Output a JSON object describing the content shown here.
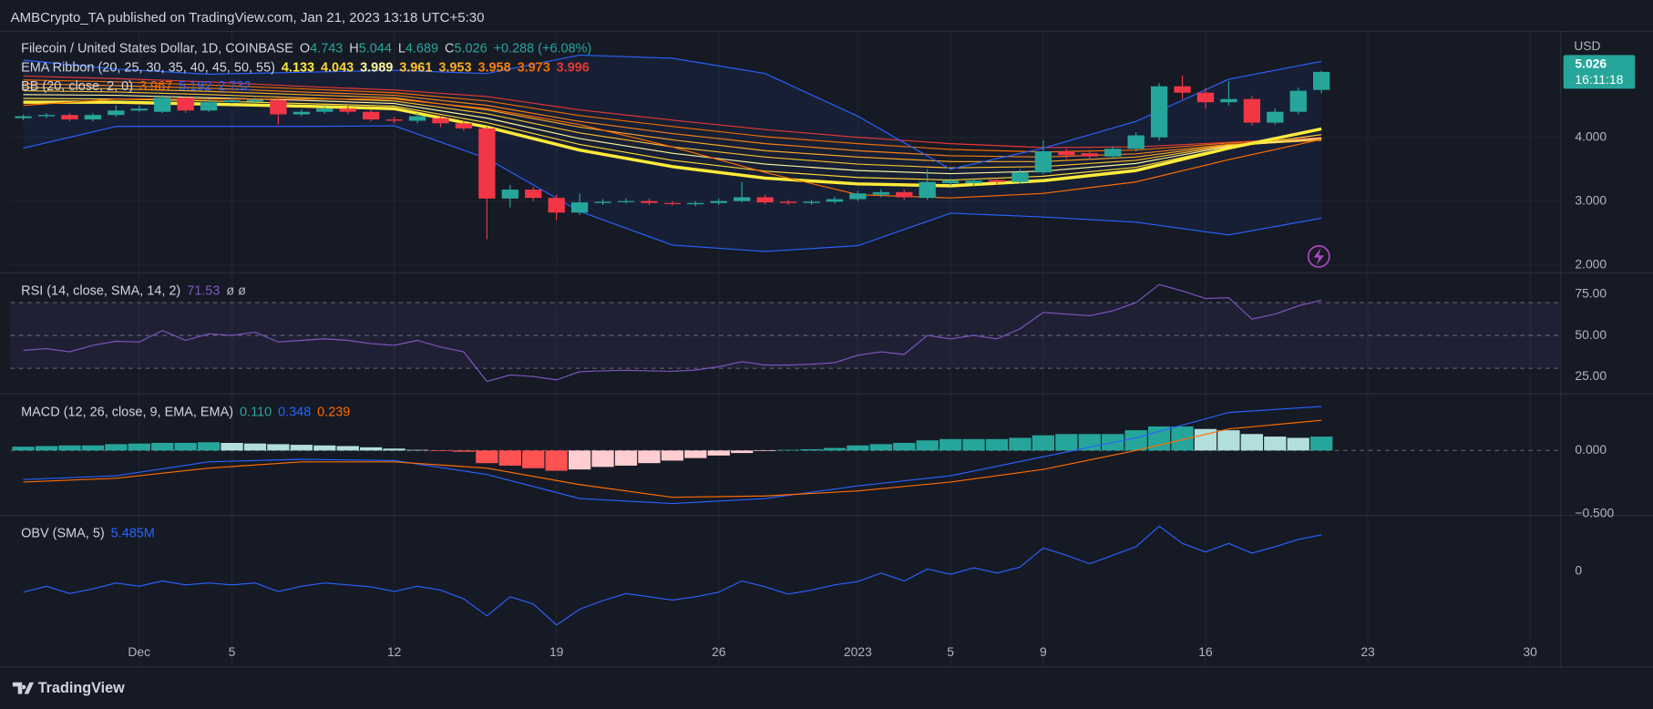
{
  "header": {
    "published": "AMBCrypto_TA published on TradingView.com, Jan 21, 2023 13:18 UTC+5:30"
  },
  "footer": {
    "brand": "TradingView"
  },
  "chart_data": [
    {
      "type": "candlestick",
      "title": "Filecoin / United States Dollar, 1D, COINBASE",
      "ohlc_labels": [
        "O",
        "H",
        "L",
        "C"
      ],
      "change_label": "+0.288 (+6.08%)",
      "currency": "USD",
      "countdown": "16:11:18",
      "up_color": "#26a69a",
      "down_color": "#f23645",
      "open": [
        4.3,
        4.33,
        4.35,
        4.28,
        4.35,
        4.42,
        4.4,
        4.62,
        4.42,
        4.55,
        4.56,
        4.58,
        4.36,
        4.4,
        4.45,
        4.4,
        4.28,
        4.26,
        4.3,
        4.22,
        4.14,
        3.04,
        3.18,
        3.05,
        2.82,
        2.97,
        2.99,
        3.0,
        2.97,
        2.95,
        2.97,
        3.0,
        3.06,
        2.99,
        2.97,
        2.99,
        3.03,
        3.1,
        3.14,
        3.05,
        3.28,
        3.28,
        3.33,
        3.3,
        3.45,
        3.78,
        3.75,
        3.7,
        3.82,
        4.0,
        4.8,
        4.7,
        4.55,
        4.6,
        4.23,
        4.4,
        4.743
      ],
      "high": [
        4.36,
        4.38,
        4.38,
        4.38,
        4.5,
        4.5,
        4.66,
        4.65,
        4.6,
        4.62,
        4.62,
        4.62,
        4.44,
        4.48,
        4.5,
        4.43,
        4.32,
        4.38,
        4.34,
        4.26,
        4.17,
        3.25,
        3.22,
        3.1,
        3.12,
        3.03,
        3.04,
        3.04,
        3.0,
        3.0,
        3.04,
        3.3,
        3.1,
        3.02,
        3.02,
        3.07,
        3.16,
        3.18,
        3.18,
        3.5,
        3.36,
        3.36,
        3.37,
        3.5,
        3.95,
        3.82,
        3.8,
        3.86,
        4.08,
        4.85,
        4.97,
        4.78,
        4.88,
        4.65,
        4.45,
        4.78,
        5.044
      ],
      "low": [
        4.27,
        4.3,
        4.25,
        4.25,
        4.32,
        4.4,
        4.38,
        4.38,
        4.4,
        4.52,
        4.53,
        4.2,
        4.33,
        4.37,
        4.36,
        4.25,
        4.22,
        4.22,
        4.16,
        4.1,
        2.4,
        2.9,
        3.0,
        2.7,
        2.78,
        2.94,
        2.96,
        2.94,
        2.93,
        2.92,
        2.94,
        2.98,
        2.95,
        2.94,
        2.94,
        2.96,
        3.0,
        3.06,
        3.02,
        3.02,
        3.24,
        3.24,
        3.26,
        3.27,
        3.42,
        3.66,
        3.65,
        3.66,
        3.78,
        3.95,
        4.6,
        4.45,
        4.5,
        4.18,
        4.2,
        4.36,
        4.689
      ],
      "close": [
        4.33,
        4.35,
        4.28,
        4.35,
        4.42,
        4.45,
        4.62,
        4.42,
        4.55,
        4.58,
        4.59,
        4.36,
        4.4,
        4.45,
        4.4,
        4.28,
        4.26,
        4.33,
        4.22,
        4.14,
        3.04,
        3.18,
        3.05,
        2.82,
        2.98,
        2.99,
        3.0,
        2.97,
        2.96,
        2.97,
        3.0,
        3.06,
        2.98,
        2.97,
        2.99,
        3.03,
        3.12,
        3.14,
        3.06,
        3.3,
        3.32,
        3.32,
        3.3,
        3.45,
        3.78,
        3.72,
        3.7,
        3.82,
        4.03,
        4.8,
        4.7,
        4.55,
        4.6,
        4.23,
        4.4,
        4.73,
        5.026
      ],
      "xlim": [
        -0.55,
        66.3
      ],
      "xticks": [
        {
          "value": 5,
          "label": "Dec"
        },
        {
          "value": 9,
          "label": "5"
        },
        {
          "value": 16,
          "label": "12"
        },
        {
          "value": 23,
          "label": "19"
        },
        {
          "value": 30,
          "label": "26"
        },
        {
          "value": 36,
          "label": "2023"
        },
        {
          "value": 40,
          "label": "5"
        },
        {
          "value": 44,
          "label": "9"
        },
        {
          "value": 51,
          "label": "16"
        },
        {
          "value": 58,
          "label": "23"
        },
        {
          "value": 65,
          "label": "30"
        }
      ],
      "ylim": [
        1.884,
        5.653
      ],
      "yticks": [
        {
          "value": 2,
          "label": "2.000"
        },
        {
          "value": 3,
          "label": "3.000"
        },
        {
          "value": 4,
          "label": "4.000"
        }
      ],
      "grid": true,
      "overlays": [
        {
          "name": "EMA Ribbon (20, 25, 30, 35, 40, 45, 50, 55)",
          "x": [
            0,
            4,
            8,
            12,
            16,
            20,
            24,
            28,
            32,
            36,
            40,
            44,
            48,
            52,
            56
          ],
          "series": [
            {
              "color": "#ffeb3b",
              "width": 3,
              "values": [
                4.55,
                4.55,
                4.52,
                4.49,
                4.45,
                4.16,
                3.8,
                3.54,
                3.36,
                3.27,
                3.24,
                3.32,
                3.48,
                3.83,
                4.133
              ]
            },
            {
              "color": "#fdd835",
              "width": 1,
              "values": [
                4.61,
                4.6,
                4.57,
                4.53,
                4.49,
                4.23,
                3.89,
                3.64,
                3.47,
                3.37,
                3.33,
                3.39,
                3.53,
                3.84,
                4.043
              ]
            },
            {
              "color": "#fff59d",
              "width": 1,
              "values": [
                4.67,
                4.66,
                4.62,
                4.58,
                4.53,
                4.3,
                3.98,
                3.75,
                3.58,
                3.48,
                3.43,
                3.47,
                3.59,
                3.86,
                3.989
              ]
            },
            {
              "color": "#fbc02d",
              "width": 1,
              "values": [
                4.73,
                4.71,
                4.67,
                4.62,
                4.57,
                4.37,
                4.07,
                3.85,
                3.69,
                3.58,
                3.52,
                3.54,
                3.64,
                3.87,
                3.961
              ]
            },
            {
              "color": "#f9a825",
              "width": 1,
              "values": [
                4.78,
                4.76,
                4.72,
                4.67,
                4.62,
                4.43,
                4.16,
                3.96,
                3.79,
                3.69,
                3.62,
                3.62,
                3.69,
                3.88,
                3.953
              ]
            },
            {
              "color": "#f57f17",
              "width": 1,
              "values": [
                4.84,
                4.81,
                4.77,
                4.71,
                4.66,
                4.5,
                4.25,
                4.06,
                3.9,
                3.79,
                3.71,
                3.69,
                3.74,
                3.89,
                3.958
              ]
            },
            {
              "color": "#ef6c00",
              "width": 1,
              "values": [
                4.9,
                4.87,
                4.82,
                4.76,
                4.7,
                4.57,
                4.34,
                4.17,
                4.01,
                3.9,
                3.81,
                3.77,
                3.8,
                3.91,
                3.973
              ]
            },
            {
              "color": "#e53935",
              "width": 1,
              "values": [
                4.96,
                4.92,
                4.87,
                4.8,
                4.74,
                4.64,
                4.43,
                4.27,
                4.12,
                4.0,
                3.9,
                3.84,
                3.85,
                3.92,
                3.996
              ]
            }
          ]
        },
        {
          "name": "BB (20, close, 2, 0)",
          "fill": "rgba(41,98,255,0.07)",
          "x": [
            0,
            4,
            8,
            12,
            16,
            20,
            24,
            28,
            32,
            36,
            40,
            44,
            48,
            52,
            56
          ],
          "series": [
            {
              "color": "#ff6d00",
              "width": 1,
              "values": [
                4.5,
                4.6,
                4.6,
                4.6,
                4.6,
                4.45,
                4.2,
                3.85,
                3.45,
                3.1,
                3.05,
                3.12,
                3.3,
                3.65,
                3.967
              ]
            },
            {
              "color": "#2962ff",
              "width": 1,
              "values": [
                5.21,
                5.07,
                4.99,
                5.02,
                5.05,
                5.0,
                5.29,
                5.24,
                5.0,
                4.33,
                3.5,
                3.83,
                4.25,
                4.91,
                5.192
              ]
            },
            {
              "color": "#2962ff",
              "width": 1,
              "values": [
                3.83,
                4.17,
                4.17,
                4.17,
                4.18,
                3.67,
                2.84,
                2.31,
                2.21,
                2.3,
                2.81,
                2.75,
                2.67,
                2.47,
                2.732
              ]
            }
          ]
        }
      ]
    },
    {
      "type": "line",
      "title": "RSI (14, close, SMA, 14, 2)",
      "extra": "ø ø",
      "ylim": [
        14.7,
        87.8
      ],
      "yticks": [
        {
          "value": 25,
          "label": "25.00"
        },
        {
          "value": 50,
          "label": "50.00"
        },
        {
          "value": 75,
          "label": "75.00"
        }
      ],
      "levels": [
        30,
        50,
        70
      ],
      "band_fill": "rgba(126,87,194,0.1)",
      "series": [
        {
          "color": "#7e57c2",
          "values": [
            41,
            42,
            40,
            44,
            46.5,
            46,
            53,
            47,
            51,
            50,
            52,
            46,
            47,
            48,
            47,
            45,
            44,
            47,
            43,
            40,
            22,
            26,
            25,
            23,
            28,
            28.5,
            28.8,
            28.5,
            28.2,
            29,
            31,
            34,
            32,
            32,
            32.5,
            33.5,
            38,
            40,
            38.5,
            50,
            48,
            50,
            48,
            54,
            64,
            63,
            62,
            65,
            70,
            81,
            77,
            72.5,
            73,
            60,
            63,
            68,
            71.53
          ]
        }
      ]
    },
    {
      "type": "macd",
      "title": "MACD (12, 26, close, 9, EMA, EMA)",
      "ylim": [
        -0.508,
        0.442
      ],
      "yticks": [
        {
          "value": -0.5,
          "label": "−0.500"
        },
        {
          "value": 0,
          "label": "0.000"
        }
      ],
      "levels": [
        0
      ],
      "hist_colors": [
        "#26a69a",
        "#b2dfdb",
        "#ffcdd2",
        "#ff5252"
      ],
      "histogram": {
        "legend_label": "0.110",
        "values": [
          0.03,
          0.035,
          0.04,
          0.04,
          0.05,
          0.055,
          0.06,
          0.06,
          0.065,
          0.06,
          0.055,
          0.05,
          0.045,
          0.04,
          0.035,
          0.025,
          0.015,
          0.005,
          -0.005,
          -0.01,
          -0.1,
          -0.12,
          -0.14,
          -0.16,
          -0.15,
          -0.13,
          -0.12,
          -0.1,
          -0.08,
          -0.06,
          -0.04,
          -0.02,
          -0.005,
          0.005,
          0.01,
          0.02,
          0.04,
          0.05,
          0.06,
          0.08,
          0.09,
          0.09,
          0.09,
          0.1,
          0.12,
          0.13,
          0.13,
          0.13,
          0.16,
          0.19,
          0.19,
          0.17,
          0.16,
          0.13,
          0.11,
          0.1,
          0.11
        ]
      },
      "x": [
        0,
        4,
        8,
        12,
        16,
        20,
        24,
        28,
        32,
        36,
        40,
        44,
        48,
        52,
        56
      ],
      "series": [
        {
          "color": "#2962ff",
          "values": [
            -0.23,
            -0.2,
            -0.09,
            -0.07,
            -0.08,
            -0.19,
            -0.38,
            -0.42,
            -0.38,
            -0.28,
            -0.2,
            -0.05,
            0.1,
            0.3,
            0.348
          ]
        },
        {
          "color": "#ff6d00",
          "values": [
            -0.25,
            -0.22,
            -0.14,
            -0.09,
            -0.09,
            -0.14,
            -0.27,
            -0.37,
            -0.36,
            -0.32,
            -0.25,
            -0.15,
            0.0,
            0.17,
            0.239
          ]
        }
      ]
    },
    {
      "type": "line",
      "title": "OBV (SMA, 5)",
      "ylim": [
        -14500000,
        8390000
      ],
      "yticks": [
        0
      ],
      "series": [
        {
          "color": "#2962ff",
          "legend_label": "5.485M",
          "values": [
            -3200000,
            -2300000,
            -3400000,
            -2700000,
            -1800000,
            -2300000,
            -1500000,
            -2100000,
            -1800000,
            -2100000,
            -1800000,
            -3100000,
            -2300000,
            -1800000,
            -2100000,
            -2400000,
            -3100000,
            -2300000,
            -2900000,
            -4200000,
            -6800000,
            -3900000,
            -5000000,
            -8200000,
            -5800000,
            -4500000,
            -3400000,
            -3900000,
            -4400000,
            -3900000,
            -3200000,
            -1500000,
            -2400000,
            -3500000,
            -2900000,
            -2100000,
            -1600000,
            -300000,
            -1500000,
            300000,
            -500000,
            500000,
            -300000,
            600000,
            3500000,
            2400000,
            1100000,
            2400000,
            3700000,
            6800000,
            4200000,
            2900000,
            4200000,
            2700000,
            3700000,
            4800000,
            5485000
          ]
        }
      ]
    }
  ]
}
